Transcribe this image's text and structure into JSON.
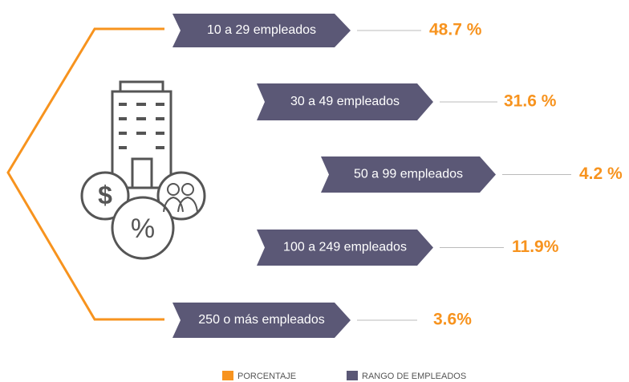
{
  "items": [
    {
      "label": "10 a 29 empleados",
      "value": "48.7 %"
    },
    {
      "label": "30 a 49 empleados",
      "value": "31.6 %"
    },
    {
      "label": "50 a 99 empleados",
      "value": "4.2 %"
    },
    {
      "label": "100 a 249 empleados",
      "value": "11.9%"
    },
    {
      "label": "250 o más empleados",
      "value": "3.6%"
    }
  ],
  "legend": [
    {
      "label": "PORCENTAJE",
      "color": "#f7931e"
    },
    {
      "label": "RANGO DE EMPLEADOS",
      "color": "#5b5876"
    }
  ]
}
